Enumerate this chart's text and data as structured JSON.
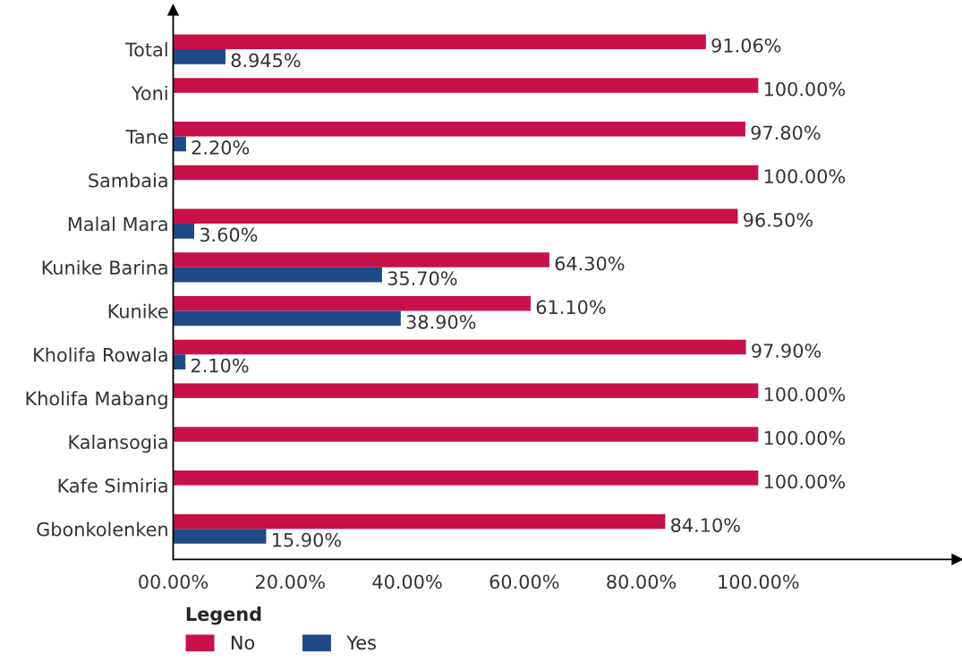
{
  "chart_data": {
    "type": "bar",
    "orientation": "horizontal",
    "categories": [
      "Total",
      "Yoni",
      "Tane",
      "Sambaia",
      "Malal Mara",
      "Kunike Barina",
      "Kunike",
      "Kholifa Rowala",
      "Kholifa Mabang",
      "Kalansogia",
      "Kafe Simiria",
      "Gbonkolenken"
    ],
    "series": [
      {
        "name": "No",
        "color": "#c8104a",
        "values": [
          91.06,
          100,
          97.8,
          100,
          96.5,
          64.3,
          61.1,
          97.9,
          100,
          100,
          100,
          84.1
        ],
        "value_labels": [
          "91.06%",
          "100.00%",
          "97.80%",
          "100.00%",
          "96.50%",
          "64.30%",
          "61.10%",
          "97.90%",
          "100.00%",
          "100.00%",
          "100.00%",
          "84.10%"
        ]
      },
      {
        "name": "Yes",
        "color": "#1f4a87",
        "values": [
          8.945,
          null,
          2.2,
          null,
          3.6,
          35.7,
          38.9,
          2.1,
          null,
          null,
          null,
          15.9
        ],
        "value_labels": [
          "8.945%",
          null,
          "2.20%",
          null,
          "3.60%",
          "35.70%",
          "38.90%",
          "2.10%",
          null,
          null,
          null,
          "15.90%"
        ]
      }
    ],
    "xlim": [
      0,
      134
    ],
    "xticks": [
      {
        "value": 0,
        "label": "00.00%"
      },
      {
        "value": 20,
        "label": "20.00%"
      },
      {
        "value": 40,
        "label": "40.00%"
      },
      {
        "value": 60,
        "label": "60.00%"
      },
      {
        "value": 80,
        "label": "80.00%"
      },
      {
        "value": 100,
        "label": "100.00%"
      }
    ],
    "legend": "bottom left",
    "legend_title": "Legend",
    "grid": false
  }
}
